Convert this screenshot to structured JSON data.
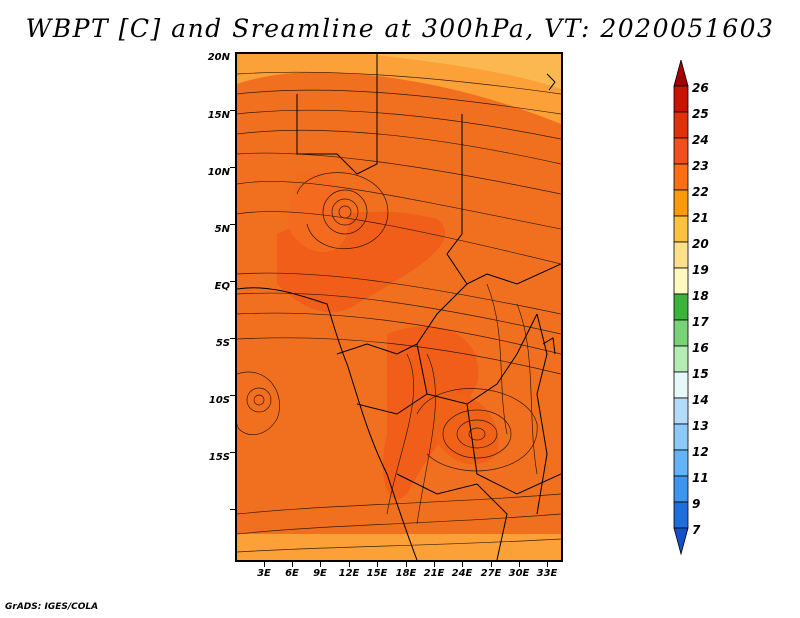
{
  "title": "WBPT [C] and Sreamline at 300hPa, VT: 2020051603",
  "credit": "GrADS: IGES/COLA",
  "map": {
    "lat_labels": [
      "20N",
      "15N",
      "10N",
      "5N",
      "EQ",
      "5S",
      "10S",
      "15S"
    ],
    "lon_labels": [
      "3E",
      "6E",
      "9E",
      "12E",
      "15E",
      "18E",
      "21E",
      "24E",
      "27E",
      "30E",
      "33E"
    ]
  },
  "colorbar": {
    "levels": [
      "26",
      "25",
      "24",
      "23",
      "22",
      "21",
      "20",
      "19",
      "18",
      "17",
      "16",
      "15",
      "14",
      "13",
      "12",
      "11",
      "9",
      "7"
    ],
    "colors": [
      "#a50000",
      "#c81400",
      "#e0320a",
      "#f0501e",
      "#fa6e14",
      "#fb9a0a",
      "#fdc040",
      "#fee08c",
      "#fff8c0",
      "#3cb43c",
      "#78d278",
      "#b4ecb4",
      "#e6f8f8",
      "#b4dcfa",
      "#8cc8f8",
      "#64b4f5",
      "#3c96f0",
      "#1e6edc",
      "#1450c8"
    ]
  },
  "palette": {
    "base": "#f07020",
    "warm": "#f05a1a",
    "cool": "#fca038",
    "edge": "#fbb850"
  }
}
